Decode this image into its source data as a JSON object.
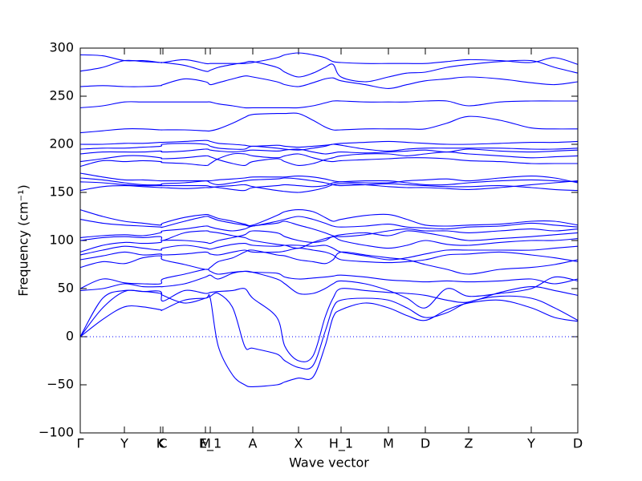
{
  "chart_data": {
    "type": "line",
    "xlabel": "Wave vector",
    "ylabel": "Frequency (cm⁻¹)",
    "color": "#0000ff",
    "zero_line": true,
    "x": [
      0,
      0.28,
      0.55,
      0.78,
      1.0,
      1.03,
      1.3,
      1.56,
      1.62,
      1.72,
      1.9,
      2.05,
      2.15,
      2.45,
      2.55,
      2.72,
      2.9,
      3.05,
      3.15,
      3.25,
      3.55,
      3.84,
      4.07,
      4.3,
      4.57,
      4.84,
      5.23,
      5.62,
      5.91,
      6.2
    ],
    "xlim": [
      0,
      6.2
    ],
    "xticks": [
      {
        "value": 0,
        "label": "Γ"
      },
      {
        "value": 0.55,
        "label": "Y"
      },
      {
        "value": 1.0,
        "label": "K"
      },
      {
        "value": 1.03,
        "label": "C"
      },
      {
        "value": 1.56,
        "label": "M"
      },
      {
        "value": 1.62,
        "label": "E_1"
      },
      {
        "value": 2.15,
        "label": "A"
      },
      {
        "value": 2.72,
        "label": "X"
      },
      {
        "value": 3.25,
        "label": "H_1"
      },
      {
        "value": 3.84,
        "label": "M"
      },
      {
        "value": 4.3,
        "label": "D"
      },
      {
        "value": 4.84,
        "label": "Z"
      },
      {
        "value": 5.62,
        "label": "Y"
      },
      {
        "value": 6.2,
        "label": "D"
      }
    ],
    "ylim": [
      -100,
      300
    ],
    "yticks": [
      {
        "value": -100,
        "label": "−100"
      },
      {
        "value": -50,
        "label": "−50"
      },
      0,
      50,
      100,
      150,
      200,
      250,
      300
    ],
    "series": [
      {
        "values": [
          0,
          18,
          31,
          31,
          28,
          28,
          38,
          40,
          40,
          -10,
          -40,
          -50,
          -52,
          -50,
          -47,
          -43,
          -42,
          -10,
          20,
          28,
          35,
          30,
          22,
          17,
          28,
          35,
          38,
          30,
          20,
          16
        ]
      },
      {
        "values": [
          0,
          30,
          47,
          47,
          45,
          43,
          35,
          40,
          42,
          45,
          30,
          -10,
          -12,
          -18,
          -25,
          -32,
          -30,
          5,
          30,
          38,
          40,
          38,
          30,
          20,
          25,
          36,
          42,
          40,
          30,
          17
        ]
      },
      {
        "values": [
          0,
          40,
          48,
          47,
          47,
          37,
          48,
          45,
          46,
          47,
          48,
          50,
          40,
          20,
          -10,
          -25,
          -20,
          20,
          40,
          50,
          48,
          46,
          45,
          43,
          38,
          36,
          46,
          52,
          48,
          43
        ]
      },
      {
        "values": [
          48,
          50,
          55,
          52,
          52,
          52,
          55,
          62,
          64,
          60,
          66,
          68,
          67,
          60,
          55,
          45,
          45,
          50,
          55,
          58,
          55,
          48,
          40,
          30,
          50,
          42,
          45,
          50,
          62,
          58
        ]
      },
      {
        "values": [
          50,
          60,
          56,
          55,
          55,
          60,
          65,
          70,
          68,
          65,
          67,
          68,
          67,
          66,
          62,
          60,
          61,
          62,
          63,
          64,
          62,
          59,
          58,
          57,
          58,
          57,
          58,
          60,
          55,
          60
        ]
      },
      {
        "values": [
          72,
          78,
          76,
          82,
          84,
          80,
          75,
          70,
          72,
          78,
          82,
          88,
          90,
          85,
          84,
          80,
          78,
          76,
          80,
          88,
          85,
          82,
          80,
          75,
          70,
          65,
          70,
          72,
          75,
          80
        ]
      },
      {
        "values": [
          80,
          84,
          88,
          85,
          86,
          85,
          86,
          88,
          86,
          85,
          88,
          90,
          88,
          88,
          89,
          92,
          90,
          88,
          85,
          80,
          78,
          77,
          78,
          80,
          85,
          86,
          88,
          85,
          82,
          78
        ]
      },
      {
        "values": [
          85,
          90,
          94,
          92,
          90,
          92,
          95,
          92,
          91,
          93,
          96,
          97,
          95,
          94,
          95,
          95,
          94,
          95,
          92,
          88,
          84,
          80,
          82,
          86,
          90,
          90,
          90,
          90,
          92,
          94
        ]
      },
      {
        "values": [
          88,
          95,
          98,
          97,
          98,
          100,
          100,
          98,
          97,
          100,
          103,
          106,
          110,
          108,
          104,
          100,
          98,
          100,
          104,
          100,
          95,
          92,
          95,
          100,
          96,
          95,
          98,
          100,
          100,
          102
        ]
      },
      {
        "values": [
          100,
          103,
          104,
          103,
          104,
          100,
          108,
          110,
          109,
          108,
          105,
          103,
          100,
          96,
          95,
          92,
          98,
          102,
          104,
          106,
          108,
          105,
          110,
          108,
          104,
          100,
          102,
          104,
          106,
          108
        ]
      },
      {
        "values": [
          103,
          105,
          106,
          105,
          108,
          110,
          112,
          115,
          114,
          112,
          110,
          112,
          115,
          118,
          120,
          116,
          112,
          108,
          105,
          104,
          106,
          110,
          112,
          110,
          110,
          108,
          110,
          112,
          110,
          112
        ]
      },
      {
        "values": [
          122,
          118,
          116,
          115,
          114,
          114,
          120,
          125,
          124,
          121,
          118,
          116,
          115,
          120,
          122,
          125,
          122,
          118,
          115,
          114,
          115,
          117,
          114,
          113,
          112,
          114,
          115,
          118,
          116,
          114
        ]
      },
      {
        "values": [
          132,
          125,
          120,
          118,
          116,
          118,
          124,
          127,
          126,
          123,
          120,
          117,
          116,
          126,
          130,
          132,
          130,
          124,
          120,
          122,
          126,
          127,
          122,
          116,
          115,
          116,
          117,
          120,
          120,
          116
        ]
      },
      {
        "values": [
          152,
          156,
          157,
          156,
          155,
          155,
          154,
          155,
          155,
          156,
          157,
          158,
          156,
          152,
          151,
          150,
          152,
          155,
          158,
          159,
          158,
          156,
          155,
          155,
          154,
          153,
          155,
          158,
          160,
          162
        ]
      },
      {
        "values": [
          161,
          160,
          158,
          157,
          157,
          157,
          157,
          157,
          156,
          155,
          153,
          152,
          155,
          157,
          158,
          157,
          156,
          157,
          160,
          161,
          162,
          162,
          160,
          158,
          158,
          160,
          162,
          163,
          162,
          161
        ]
      },
      {
        "values": [
          165,
          163,
          160,
          158,
          158,
          159,
          160,
          162,
          162,
          163,
          164,
          165,
          166,
          166,
          166,
          167,
          166,
          164,
          162,
          161,
          160,
          160,
          162,
          163,
          164,
          162,
          165,
          167,
          165,
          160
        ]
      },
      {
        "values": [
          170,
          166,
          163,
          163,
          162,
          162,
          162,
          162,
          160,
          158,
          160,
          162,
          163,
          164,
          165,
          164,
          162,
          160,
          158,
          157,
          158,
          159,
          158,
          157,
          156,
          156,
          157,
          155,
          153,
          152
        ]
      },
      {
        "values": [
          177,
          183,
          182,
          183,
          182,
          181,
          180,
          178,
          180,
          185,
          190,
          190,
          188,
          186,
          188,
          190,
          186,
          183,
          182,
          183,
          184,
          185,
          186,
          186,
          185,
          183,
          182,
          180,
          180,
          180
        ]
      },
      {
        "values": [
          182,
          185,
          188,
          188,
          186,
          185,
          186,
          188,
          187,
          184,
          180,
          178,
          182,
          185,
          182,
          178,
          180,
          184,
          186,
          188,
          190,
          190,
          188,
          190,
          192,
          190,
          188,
          186,
          187,
          188
        ]
      },
      {
        "values": [
          190,
          192,
          192,
          192,
          193,
          192,
          193,
          195,
          194,
          193,
          192,
          193,
          194,
          193,
          194,
          195,
          192,
          190,
          191,
          192,
          191,
          192,
          193,
          194,
          192,
          195,
          193,
          192,
          193,
          194
        ]
      },
      {
        "values": [
          195,
          196,
          196,
          197,
          198,
          200,
          201,
          200,
          198,
          196,
          195,
          195,
          198,
          196,
          195,
          194,
          196,
          198,
          200,
          199,
          195,
          193,
          195,
          196,
          196,
          196,
          196,
          195,
          195,
          196
        ]
      },
      {
        "values": [
          200,
          200,
          201,
          201,
          202,
          202,
          203,
          204,
          203,
          201,
          200,
          199,
          198,
          199,
          198,
          197,
          198,
          199,
          200,
          201,
          202,
          203,
          202,
          201,
          200,
          200,
          201,
          202,
          202,
          203
        ]
      },
      {
        "values": [
          212,
          214,
          216,
          216,
          215,
          215,
          215,
          214,
          214,
          216,
          222,
          228,
          231,
          232,
          232,
          232,
          225,
          218,
          215,
          215,
          216,
          216,
          216,
          216,
          222,
          229,
          225,
          217,
          216,
          216
        ]
      },
      {
        "values": [
          238,
          240,
          244,
          244,
          244,
          244,
          244,
          244,
          244,
          242,
          240,
          238,
          238,
          238,
          238,
          238,
          240,
          243,
          245,
          245,
          244,
          244,
          244,
          245,
          245,
          240,
          244,
          245,
          245,
          245
        ]
      },
      {
        "values": [
          260,
          261,
          260,
          260,
          261,
          262,
          268,
          265,
          262,
          264,
          268,
          271,
          270,
          265,
          262,
          260,
          264,
          268,
          269,
          266,
          262,
          258,
          262,
          266,
          268,
          270,
          268,
          264,
          262,
          265
        ]
      },
      {
        "values": [
          276,
          280,
          287,
          286,
          285,
          285,
          288,
          284,
          284,
          284,
          284,
          284,
          285,
          290,
          293,
          295,
          293,
          290,
          286,
          285,
          284,
          284,
          284,
          284,
          286,
          288,
          287,
          285,
          290,
          283
        ]
      },
      {
        "values": [
          293,
          292,
          287,
          287,
          285,
          285,
          282,
          276,
          277,
          280,
          283,
          285,
          286,
          280,
          275,
          270,
          274,
          280,
          283,
          270,
          265,
          270,
          274,
          275,
          280,
          283,
          286,
          287,
          280,
          274
        ]
      }
    ]
  }
}
